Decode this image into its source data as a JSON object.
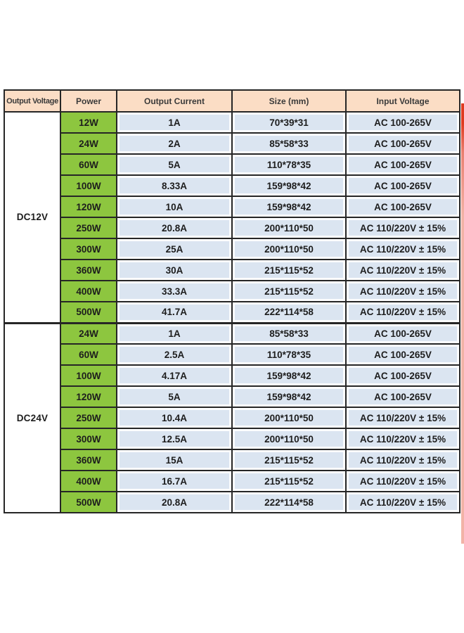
{
  "table": {
    "headers": [
      "Output Voltage",
      "Power",
      "Output Current",
      "Size (mm)",
      "Input Voltage"
    ],
    "sections": [
      {
        "voltage": "DC12V",
        "rows": [
          [
            "12W",
            "1A",
            "70*39*31",
            "AC 100-265V"
          ],
          [
            "24W",
            "2A",
            "85*58*33",
            "AC 100-265V"
          ],
          [
            "60W",
            "5A",
            "110*78*35",
            "AC 100-265V"
          ],
          [
            "100W",
            "8.33A",
            "159*98*42",
            "AC 100-265V"
          ],
          [
            "120W",
            "10A",
            "159*98*42",
            "AC 100-265V"
          ],
          [
            "250W",
            "20.8A",
            "200*110*50",
            "AC 110/220V ± 15%"
          ],
          [
            "300W",
            "25A",
            "200*110*50",
            "AC 110/220V ± 15%"
          ],
          [
            "360W",
            "30A",
            "215*115*52",
            "AC 110/220V ± 15%"
          ],
          [
            "400W",
            "33.3A",
            "215*115*52",
            "AC 110/220V ± 15%"
          ],
          [
            "500W",
            "41.7A",
            "222*114*58",
            "AC 110/220V ± 15%"
          ]
        ]
      },
      {
        "voltage": "DC24V",
        "rows": [
          [
            "24W",
            "1A",
            "85*58*33",
            "AC 100-265V"
          ],
          [
            "60W",
            "2.5A",
            "110*78*35",
            "AC 100-265V"
          ],
          [
            "100W",
            "4.17A",
            "159*98*42",
            "AC 100-265V"
          ],
          [
            "120W",
            "5A",
            "159*98*42",
            "AC 100-265V"
          ],
          [
            "250W",
            "10.4A",
            "200*110*50",
            "AC 110/220V ± 15%"
          ],
          [
            "300W",
            "12.5A",
            "200*110*50",
            "AC 110/220V ± 15%"
          ],
          [
            "360W",
            "15A",
            "215*115*52",
            "AC 110/220V ± 15%"
          ],
          [
            "400W",
            "16.7A",
            "215*115*52",
            "AC 110/220V ± 15%"
          ],
          [
            "500W",
            "20.8A",
            "222*114*58",
            "AC 110/220V ± 15%"
          ]
        ]
      }
    ],
    "colors": {
      "header_bg": "#fbddc5",
      "power_cell_bg": "#8dc63f",
      "data_cell_bg": "#dbe5f1",
      "grid_border": "#262626",
      "red_marker": "#df3a20"
    }
  }
}
